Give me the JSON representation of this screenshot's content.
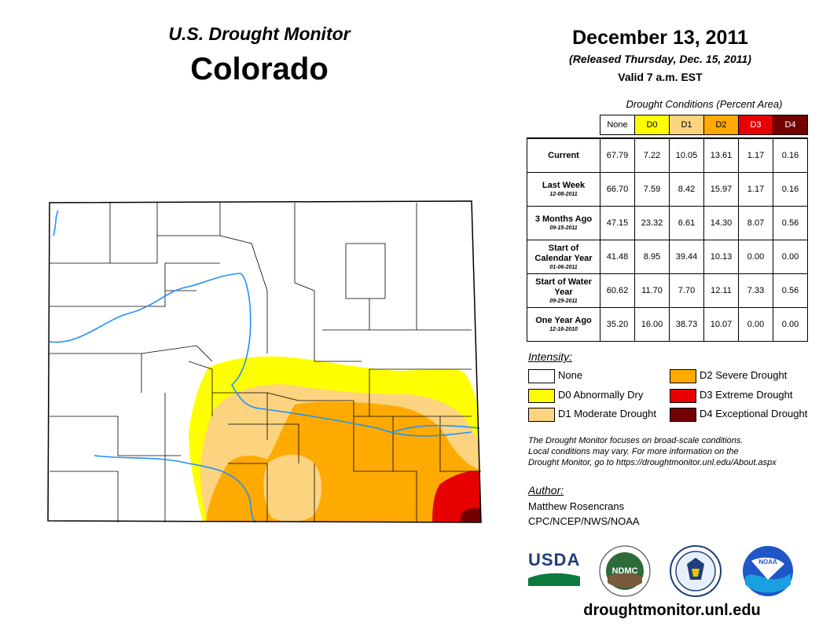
{
  "header": {
    "monitor_title": "U.S. Drought Monitor",
    "state": "Colorado",
    "date": "December 13, 2011",
    "released": "(Released Thursday, Dec. 15, 2011)",
    "valid": "Valid 7 a.m. EST"
  },
  "table": {
    "caption": "Drought Conditions (Percent Area)",
    "columns": [
      "None",
      "D0",
      "D1",
      "D2",
      "D3",
      "D4"
    ],
    "column_colors": [
      "#ffffff",
      "#ffff00",
      "#fcd37f",
      "#ffaa00",
      "#e60000",
      "#730000"
    ],
    "column_text_colors": [
      "#000000",
      "#000000",
      "#000000",
      "#000000",
      "#ffffff",
      "#ffffff"
    ],
    "rows": [
      {
        "label": "Current",
        "sub": "",
        "values": [
          "67.79",
          "7.22",
          "10.05",
          "13.61",
          "1.17",
          "0.16"
        ]
      },
      {
        "label": "Last Week",
        "sub": "12-08-2011",
        "values": [
          "66.70",
          "7.59",
          "8.42",
          "15.97",
          "1.17",
          "0.16"
        ]
      },
      {
        "label": "3 Months Ago",
        "sub": "09-15-2011",
        "values": [
          "47.15",
          "23.32",
          "6.61",
          "14.30",
          "8.07",
          "0.56"
        ]
      },
      {
        "label": "Start of Calendar Year",
        "sub": "01-06-2011",
        "values": [
          "41.48",
          "8.95",
          "39.44",
          "10.13",
          "0.00",
          "0.00"
        ]
      },
      {
        "label": "Start of Water Year",
        "sub": "09-29-2011",
        "values": [
          "60.62",
          "11.70",
          "7.70",
          "12.11",
          "7.33",
          "0.56"
        ]
      },
      {
        "label": "One Year Ago",
        "sub": "12-16-2010",
        "values": [
          "35.20",
          "16.00",
          "38.73",
          "10.07",
          "0.00",
          "0.00"
        ]
      }
    ]
  },
  "legend": {
    "title": "Intensity:",
    "items": [
      {
        "label": "None",
        "color": "#ffffff"
      },
      {
        "label": "D0 Abnormally Dry",
        "color": "#ffff00"
      },
      {
        "label": "D1 Moderate Drought",
        "color": "#fcd37f"
      },
      {
        "label": "D2 Severe Drought",
        "color": "#ffaa00"
      },
      {
        "label": "D3 Extreme Drought",
        "color": "#e60000"
      },
      {
        "label": "D4 Exceptional Drought",
        "color": "#730000"
      }
    ]
  },
  "note": {
    "line1": "The Drought Monitor focuses on broad-scale conditions.",
    "line2": "Local conditions may vary. For more information on the",
    "line3": "Drought Monitor, go to https://droughtmonitor.unl.edu/About.aspx"
  },
  "author": {
    "label": "Author:",
    "name": "Matthew Rosencrans",
    "org": "CPC/NCEP/NWS/NOAA"
  },
  "logos": {
    "usda": "USDA",
    "ndmc": "NDMC",
    "noaa": "NOAA"
  },
  "footer": {
    "url": "droughtmonitor.unl.edu"
  }
}
